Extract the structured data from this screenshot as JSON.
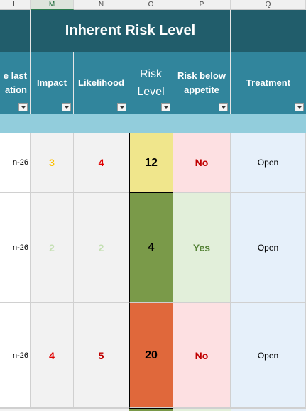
{
  "columns": [
    "L",
    "M",
    "N",
    "O",
    "P",
    "Q"
  ],
  "group_title": "Inherent Risk Level",
  "headers": {
    "last_partial_1": "e last",
    "last_partial_2": "ation",
    "impact": "Impact",
    "likelihood": "Likelihood",
    "risk_level_1": "Risk",
    "risk_level_2": "Level",
    "appetite_1": "Risk below",
    "appetite_2": "appetite",
    "treatment": "Treatment"
  },
  "rows": [
    {
      "last": "n-26",
      "impact": "3",
      "likelihood": "4",
      "risk_level": "12",
      "appetite": "No",
      "treatment": "Open"
    },
    {
      "last": "n-26",
      "impact": "2",
      "likelihood": "2",
      "risk_level": "4",
      "appetite": "Yes",
      "treatment": "Open"
    },
    {
      "last": "n-26",
      "impact": "4",
      "likelihood": "5",
      "risk_level": "20",
      "appetite": "No",
      "treatment": "Open"
    }
  ],
  "colors": {
    "header_dark": "#215d6b",
    "header_mid": "#31859c",
    "band": "#92cddc",
    "risk_yellow": "#f0e68c",
    "risk_green": "#7a9a49",
    "risk_orange": "#e0683b",
    "no_bg": "#fde0e2",
    "yes_bg": "#e2efda",
    "treatment_bg": "#e6f0fa"
  }
}
